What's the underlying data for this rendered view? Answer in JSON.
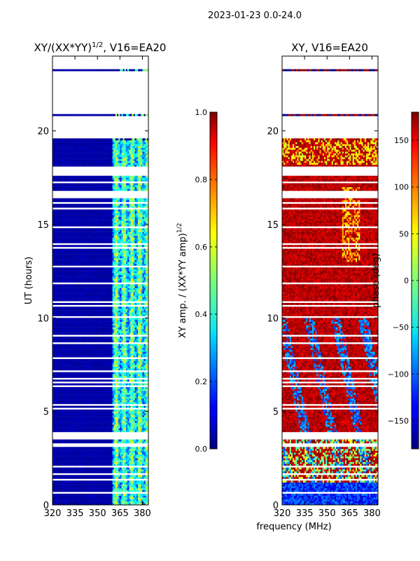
{
  "figure": {
    "suptitle": "2023-01-23 0.0-24.0",
    "shared_xlabel": "frequency (MHz)"
  },
  "chart_data": [
    {
      "type": "heatmap",
      "id": "amp",
      "title": "XY/(XX*YY)",
      "title_sup": "1/2",
      "title_tail": ", V16=EA20",
      "xlabel": "",
      "ylabel": "UT (hours)",
      "xlim": [
        320,
        384
      ],
      "ylim": [
        0,
        24
      ],
      "x_ticks": [
        320,
        335,
        350,
        365,
        380
      ],
      "y_ticks": [
        0,
        5,
        10,
        15,
        20
      ],
      "colorbar": {
        "label": "XY amp. / (XX*YY amp)",
        "label_sup": "1/2",
        "range": [
          0.0,
          1.0
        ],
        "ticks": [
          "0.0",
          "0.2",
          "0.4",
          "0.6",
          "0.8",
          "1.0"
        ],
        "tick_values": [
          0.0,
          0.2,
          0.4,
          0.6,
          0.8,
          1.0
        ]
      },
      "colormap": "jet",
      "note": "values near 0 for 320-360 MHz; 0.2-0.6 for 360-384 MHz"
    },
    {
      "type": "heatmap",
      "id": "phase",
      "title": "XY, V16=EA20",
      "xlabel": "",
      "ylabel": "",
      "xlim": [
        320,
        384
      ],
      "ylim": [
        0,
        24
      ],
      "x_ticks": [
        320,
        335,
        350,
        365,
        380
      ],
      "y_ticks": [
        0,
        5,
        10,
        15,
        20
      ],
      "colorbar": {
        "label": "phase (deg)",
        "range": [
          -180,
          180
        ],
        "ticks": [
          "−150",
          "−100",
          "−50",
          "0",
          "50",
          "100",
          "150"
        ],
        "tick_values": [
          -150,
          -100,
          -50,
          0,
          50,
          100,
          150
        ]
      },
      "colormap": "jet",
      "note": "mostly +100..+180 deg (red/orange) with blue patches at 3-10 h"
    }
  ]
}
